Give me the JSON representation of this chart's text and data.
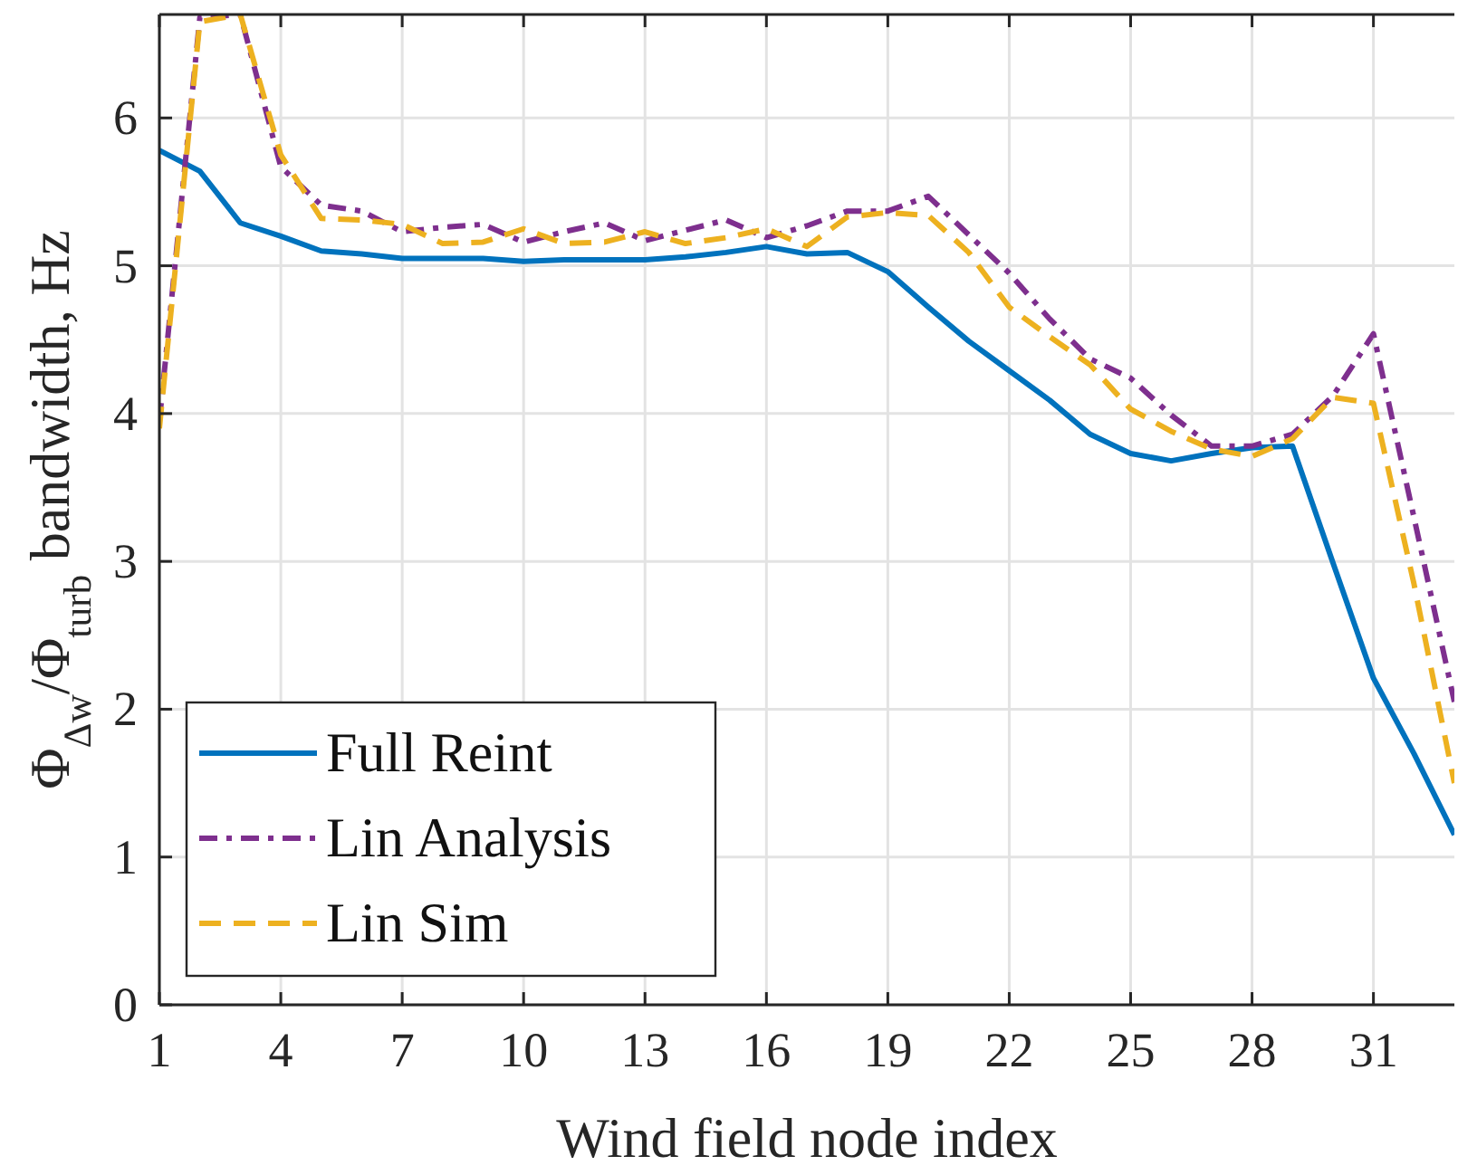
{
  "chart_data": {
    "type": "line",
    "xlabel": "Wind field node index",
    "ylabel": "Φ$_{Δw}$/Φ$_{turb}$ bandwidth, Hz",
    "x": [
      1,
      2,
      3,
      4,
      5,
      6,
      7,
      8,
      9,
      10,
      11,
      12,
      13,
      14,
      15,
      16,
      17,
      18,
      19,
      20,
      21,
      22,
      23,
      24,
      25,
      26,
      27,
      28,
      29,
      30,
      31,
      32,
      33
    ],
    "series": [
      {
        "name": "Full Reint",
        "color": "#0072bd",
        "line_style": "solid",
        "values": [
          5.78,
          5.64,
          5.29,
          5.2,
          5.1,
          5.08,
          5.05,
          5.05,
          5.05,
          5.03,
          5.04,
          5.04,
          5.04,
          5.06,
          5.09,
          5.13,
          5.08,
          5.09,
          4.96,
          4.72,
          4.49,
          4.29,
          4.09,
          3.86,
          3.73,
          3.68,
          3.73,
          3.77,
          3.78,
          2.99,
          2.21,
          1.7,
          1.15
        ]
      },
      {
        "name": "Lin Analysis",
        "color": "#7e2f8e",
        "line_style": "dashdot",
        "values": [
          3.95,
          6.68,
          6.7,
          5.67,
          5.41,
          5.37,
          5.23,
          5.26,
          5.28,
          5.16,
          5.23,
          5.29,
          5.17,
          5.24,
          5.31,
          5.19,
          5.27,
          5.37,
          5.37,
          5.47,
          5.21,
          4.95,
          4.64,
          4.37,
          4.24,
          3.99,
          3.78,
          3.78,
          3.86,
          4.12,
          4.54,
          3.3,
          2.05
        ]
      },
      {
        "name": "Lin Sim",
        "color": "#edb120",
        "line_style": "dashed",
        "values": [
          3.9,
          6.65,
          6.7,
          5.75,
          5.32,
          5.31,
          5.28,
          5.15,
          5.16,
          5.25,
          5.15,
          5.16,
          5.23,
          5.15,
          5.19,
          5.25,
          5.13,
          5.33,
          5.36,
          5.34,
          5.09,
          4.72,
          4.52,
          4.33,
          4.03,
          3.88,
          3.76,
          3.71,
          3.83,
          4.11,
          4.07,
          2.85,
          1.5
        ]
      }
    ],
    "xlim": [
      1,
      33
    ],
    "ylim": [
      0,
      6.7
    ],
    "xticks": [
      1,
      4,
      7,
      10,
      13,
      16,
      19,
      22,
      25,
      28,
      31
    ],
    "yticks": [
      0,
      1,
      2,
      3,
      4,
      5,
      6
    ],
    "grid": true,
    "legend": "bottom left"
  }
}
